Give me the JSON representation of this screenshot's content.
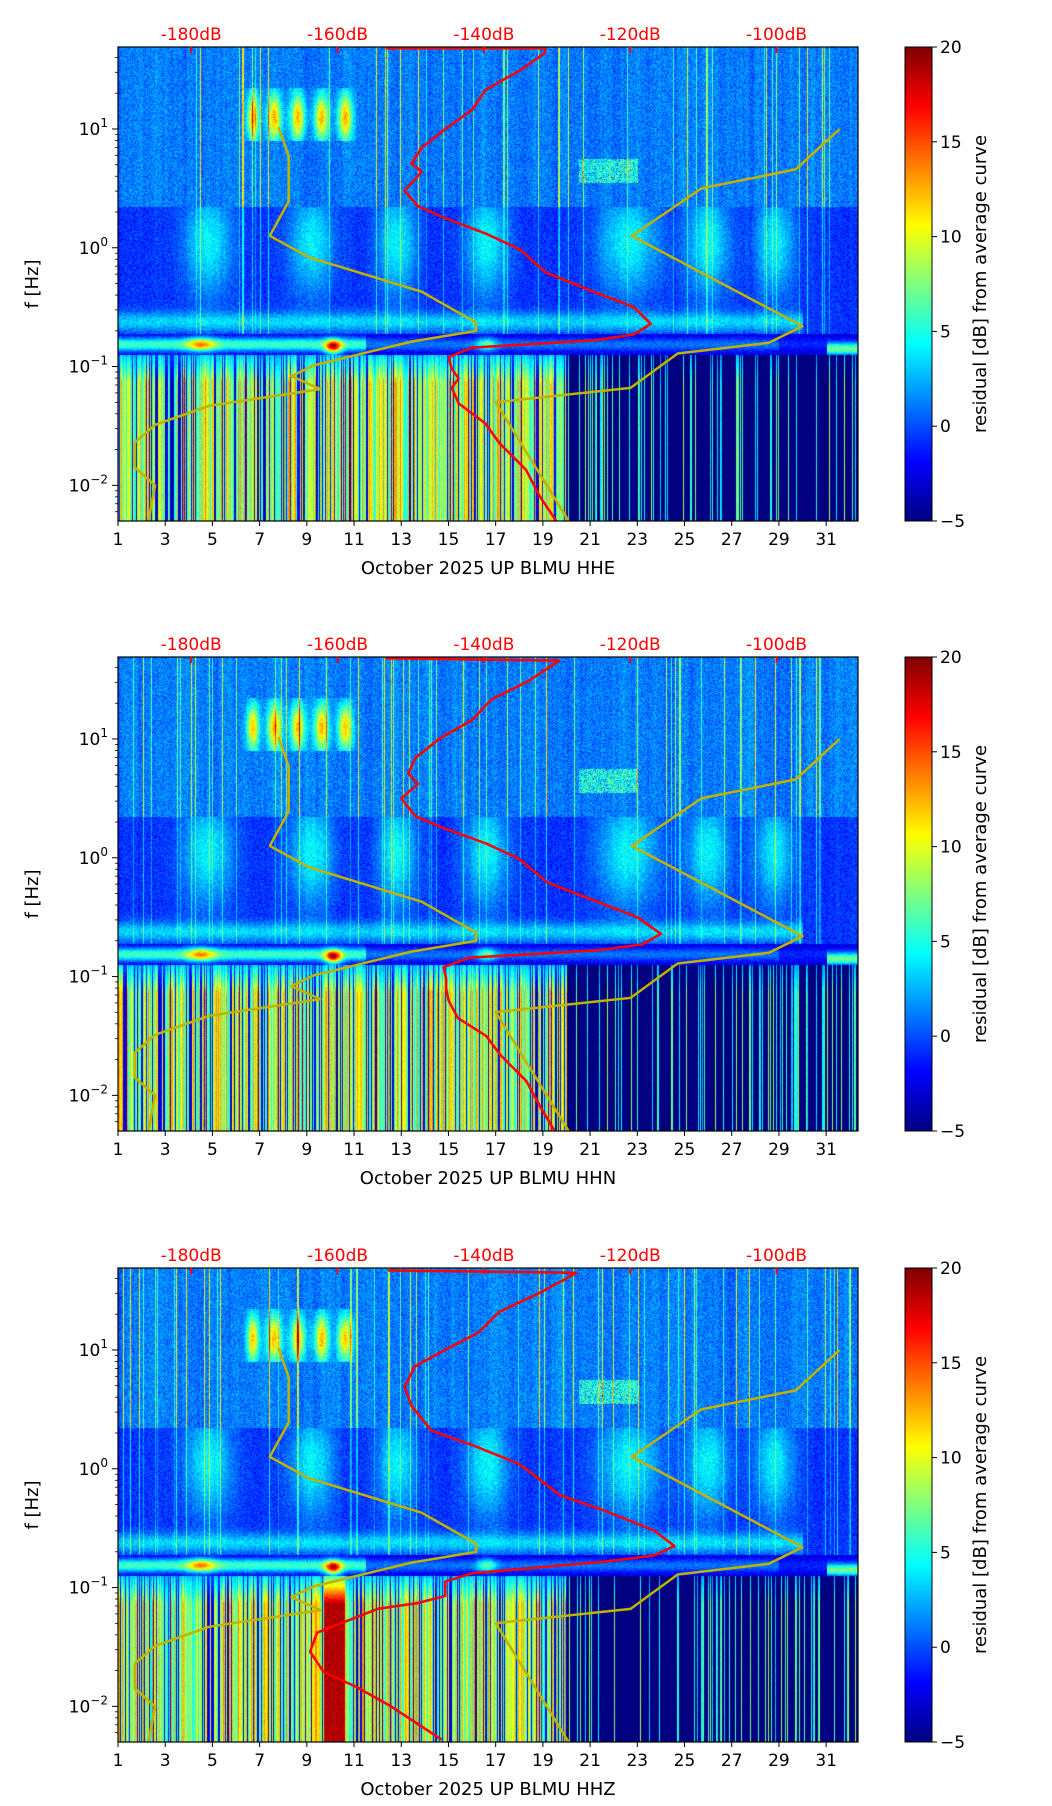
{
  "chart_data": [
    {
      "type": "heatmap",
      "title": "",
      "xlabel": "October 2025 UP BLMU  HHE",
      "ylabel": "f [Hz]",
      "colorbar_label": "residual [dB] from average curve",
      "colorbar_ticks": [
        "20",
        "15",
        "10",
        "5",
        "0",
        "−5"
      ],
      "colorbar_range": [
        -5,
        20
      ],
      "x_ticks": [
        "1",
        "3",
        "5",
        "7",
        "9",
        "11",
        "13",
        "15",
        "17",
        "19",
        "21",
        "23",
        "25",
        "27",
        "29",
        "31"
      ],
      "xlim": [
        1,
        32.35
      ],
      "y_scale": "log",
      "ylim_log10": [
        -2.3,
        1.69
      ],
      "y_ticks": [
        {
          "base": "10",
          "exp": "1"
        },
        {
          "base": "10",
          "exp": "0"
        },
        {
          "base": "10",
          "exp": "−1"
        },
        {
          "base": "10",
          "exp": "−2"
        }
      ],
      "top_axis_labels": [
        "-180dB",
        "-160dB",
        "-140dB",
        "-120dB",
        "-100dB"
      ],
      "top_axis_days": [
        4.1,
        10.3,
        16.5,
        22.7,
        28.9
      ],
      "red_curve": [
        [
          12.34,
          1.68
        ],
        [
          19.09,
          1.68
        ],
        [
          19.09,
          1.64
        ],
        [
          18.0,
          1.49
        ],
        [
          16.57,
          1.33
        ],
        [
          16.0,
          1.16
        ],
        [
          14.86,
          1.0
        ],
        [
          13.86,
          0.84
        ],
        [
          13.43,
          0.71
        ],
        [
          13.86,
          0.64
        ],
        [
          13.14,
          0.48
        ],
        [
          13.71,
          0.35
        ],
        [
          14.86,
          0.25
        ],
        [
          16.57,
          0.12
        ],
        [
          18.0,
          -0.01
        ],
        [
          19.14,
          -0.21
        ],
        [
          21.14,
          -0.37
        ],
        [
          22.86,
          -0.5
        ],
        [
          23.57,
          -0.64
        ],
        [
          22.86,
          -0.73
        ],
        [
          21.14,
          -0.78
        ],
        [
          16.0,
          -0.84
        ],
        [
          15.0,
          -0.92
        ],
        [
          15.14,
          -1.02
        ],
        [
          15.43,
          -1.1
        ],
        [
          15.14,
          -1.18
        ],
        [
          15.43,
          -1.31
        ],
        [
          16.57,
          -1.48
        ],
        [
          17.14,
          -1.64
        ],
        [
          18.29,
          -1.87
        ],
        [
          18.86,
          -2.09
        ],
        [
          19.57,
          -2.3
        ]
      ],
      "yellow_curve_low": [
        [
          7.8,
          1.016
        ],
        [
          8.23,
          0.77
        ],
        [
          8.23,
          0.39
        ],
        [
          7.43,
          0.1
        ],
        [
          9.09,
          -0.08
        ],
        [
          13.86,
          -0.37
        ],
        [
          16.17,
          -0.63
        ],
        [
          16.17,
          -0.7
        ],
        [
          13.43,
          -0.79
        ],
        [
          9.29,
          -0.99
        ],
        [
          8.34,
          -1.08
        ],
        [
          9.57,
          -1.19
        ],
        [
          4.86,
          -1.33
        ],
        [
          2.57,
          -1.49
        ],
        [
          1.71,
          -1.64
        ],
        [
          1.71,
          -1.85
        ],
        [
          2.57,
          -2.0
        ],
        [
          2.29,
          -2.3
        ]
      ],
      "yellow_curve_high": [
        [
          31.57,
          1.0
        ],
        [
          29.71,
          0.66
        ],
        [
          25.71,
          0.5
        ],
        [
          22.77,
          0.1
        ],
        [
          30.0,
          -0.66
        ],
        [
          28.57,
          -0.8
        ],
        [
          24.71,
          -0.89
        ],
        [
          22.71,
          -1.18
        ],
        [
          17.0,
          -1.3
        ],
        [
          20.09,
          -2.3
        ]
      ]
    },
    {
      "type": "heatmap",
      "title": "",
      "xlabel": "October 2025 UP BLMU  HHN",
      "ylabel": "f [Hz]",
      "colorbar_label": "residual [dB] from average curve",
      "colorbar_ticks": [
        "20",
        "15",
        "10",
        "5",
        "0",
        "−5"
      ],
      "colorbar_range": [
        -5,
        20
      ],
      "x_ticks": [
        "1",
        "3",
        "5",
        "7",
        "9",
        "11",
        "13",
        "15",
        "17",
        "19",
        "21",
        "23",
        "25",
        "27",
        "29",
        "31"
      ],
      "xlim": [
        1,
        32.35
      ],
      "y_scale": "log",
      "ylim_log10": [
        -2.3,
        1.69
      ],
      "y_ticks": [
        {
          "base": "10",
          "exp": "1"
        },
        {
          "base": "10",
          "exp": "0"
        },
        {
          "base": "10",
          "exp": "−1"
        },
        {
          "base": "10",
          "exp": "−2"
        }
      ],
      "top_axis_labels": [
        "-180dB",
        "-160dB",
        "-140dB",
        "-120dB",
        "-100dB"
      ],
      "top_axis_days": [
        4.1,
        10.3,
        16.5,
        22.7,
        28.9
      ],
      "red_curve": [
        [
          12.34,
          1.68
        ],
        [
          19.7,
          1.66
        ],
        [
          18.4,
          1.49
        ],
        [
          16.8,
          1.33
        ],
        [
          16.0,
          1.16
        ],
        [
          14.6,
          1.0
        ],
        [
          13.6,
          0.84
        ],
        [
          13.3,
          0.71
        ],
        [
          13.7,
          0.62
        ],
        [
          13.0,
          0.5
        ],
        [
          13.6,
          0.35
        ],
        [
          14.8,
          0.25
        ],
        [
          16.6,
          0.12
        ],
        [
          18.0,
          -0.01
        ],
        [
          19.2,
          -0.21
        ],
        [
          21.3,
          -0.37
        ],
        [
          23.0,
          -0.5
        ],
        [
          24.0,
          -0.64
        ],
        [
          23.2,
          -0.73
        ],
        [
          21.3,
          -0.78
        ],
        [
          15.9,
          -0.84
        ],
        [
          14.8,
          -0.92
        ],
        [
          14.9,
          -1.02
        ],
        [
          14.9,
          -1.1
        ],
        [
          15.0,
          -1.2
        ],
        [
          15.4,
          -1.35
        ],
        [
          16.6,
          -1.5
        ],
        [
          17.2,
          -1.66
        ],
        [
          18.3,
          -1.88
        ],
        [
          18.9,
          -2.1
        ],
        [
          19.5,
          -2.3
        ]
      ],
      "yellow_curve_low": [
        [
          7.8,
          1.016
        ],
        [
          8.23,
          0.77
        ],
        [
          8.23,
          0.39
        ],
        [
          7.43,
          0.1
        ],
        [
          9.09,
          -0.08
        ],
        [
          13.86,
          -0.37
        ],
        [
          16.17,
          -0.63
        ],
        [
          16.17,
          -0.7
        ],
        [
          13.43,
          -0.79
        ],
        [
          9.29,
          -0.99
        ],
        [
          8.34,
          -1.08
        ],
        [
          9.57,
          -1.19
        ],
        [
          4.86,
          -1.33
        ],
        [
          2.57,
          -1.49
        ],
        [
          1.71,
          -1.64
        ],
        [
          1.71,
          -1.85
        ],
        [
          2.57,
          -2.0
        ],
        [
          2.29,
          -2.3
        ]
      ],
      "yellow_curve_high": [
        [
          31.57,
          1.0
        ],
        [
          29.71,
          0.66
        ],
        [
          25.71,
          0.5
        ],
        [
          22.77,
          0.1
        ],
        [
          30.0,
          -0.66
        ],
        [
          28.57,
          -0.8
        ],
        [
          24.71,
          -0.89
        ],
        [
          22.71,
          -1.18
        ],
        [
          17.0,
          -1.3
        ],
        [
          20.09,
          -2.3
        ]
      ]
    },
    {
      "type": "heatmap",
      "title": "",
      "xlabel": "October 2025 UP BLMU  HHZ",
      "ylabel": "f [Hz]",
      "colorbar_label": "residual [dB] from average curve",
      "colorbar_ticks": [
        "20",
        "15",
        "10",
        "5",
        "0",
        "−5"
      ],
      "colorbar_range": [
        -5,
        20
      ],
      "x_ticks": [
        "1",
        "3",
        "5",
        "7",
        "9",
        "11",
        "13",
        "15",
        "17",
        "19",
        "21",
        "23",
        "25",
        "27",
        "29",
        "31"
      ],
      "xlim": [
        1,
        32.35
      ],
      "y_scale": "log",
      "ylim_log10": [
        -2.3,
        1.69
      ],
      "y_ticks": [
        {
          "base": "10",
          "exp": "1"
        },
        {
          "base": "10",
          "exp": "0"
        },
        {
          "base": "10",
          "exp": "−1"
        },
        {
          "base": "10",
          "exp": "−2"
        }
      ],
      "top_axis_labels": [
        "-180dB",
        "-160dB",
        "-140dB",
        "-120dB",
        "-100dB"
      ],
      "top_axis_days": [
        4.1,
        10.3,
        16.5,
        22.7,
        28.9
      ],
      "red_curve": [
        [
          12.43,
          1.67
        ],
        [
          20.43,
          1.65
        ],
        [
          18.86,
          1.48
        ],
        [
          17.14,
          1.32
        ],
        [
          16.29,
          1.15
        ],
        [
          14.57,
          0.97
        ],
        [
          13.57,
          0.86
        ],
        [
          13.14,
          0.69
        ],
        [
          13.43,
          0.53
        ],
        [
          14.29,
          0.32
        ],
        [
          16.0,
          0.2
        ],
        [
          18.0,
          0.04
        ],
        [
          19.71,
          -0.22
        ],
        [
          21.71,
          -0.36
        ],
        [
          23.71,
          -0.52
        ],
        [
          24.57,
          -0.65
        ],
        [
          23.71,
          -0.73
        ],
        [
          21.71,
          -0.78
        ],
        [
          16.0,
          -0.88
        ],
        [
          14.86,
          -0.95
        ],
        [
          14.86,
          -1.07
        ],
        [
          13.71,
          -1.13
        ],
        [
          12.0,
          -1.18
        ],
        [
          9.43,
          -1.38
        ],
        [
          9.14,
          -1.54
        ],
        [
          9.71,
          -1.71
        ],
        [
          11.14,
          -1.84
        ],
        [
          12.57,
          -2.0
        ],
        [
          14.71,
          -2.28
        ]
      ],
      "yellow_curve_low": [
        [
          7.8,
          1.016
        ],
        [
          8.23,
          0.77
        ],
        [
          8.23,
          0.39
        ],
        [
          7.43,
          0.1
        ],
        [
          9.09,
          -0.08
        ],
        [
          13.86,
          -0.37
        ],
        [
          16.17,
          -0.63
        ],
        [
          16.17,
          -0.7
        ],
        [
          13.43,
          -0.79
        ],
        [
          9.29,
          -0.99
        ],
        [
          8.34,
          -1.08
        ],
        [
          9.57,
          -1.19
        ],
        [
          4.86,
          -1.33
        ],
        [
          2.57,
          -1.49
        ],
        [
          1.71,
          -1.64
        ],
        [
          1.71,
          -1.85
        ],
        [
          2.57,
          -2.0
        ],
        [
          2.29,
          -2.3
        ]
      ],
      "yellow_curve_high": [
        [
          31.57,
          1.0
        ],
        [
          29.71,
          0.66
        ],
        [
          25.71,
          0.5
        ],
        [
          22.77,
          0.1
        ],
        [
          30.0,
          -0.66
        ],
        [
          28.57,
          -0.8
        ],
        [
          24.71,
          -0.89
        ],
        [
          22.71,
          -1.18
        ],
        [
          17.0,
          -1.3
        ],
        [
          20.09,
          -2.3
        ]
      ]
    }
  ],
  "colors": {
    "red_curve": "#ff0000",
    "yellow_curve": "#c2b200",
    "top_labels": "#ff0000"
  }
}
